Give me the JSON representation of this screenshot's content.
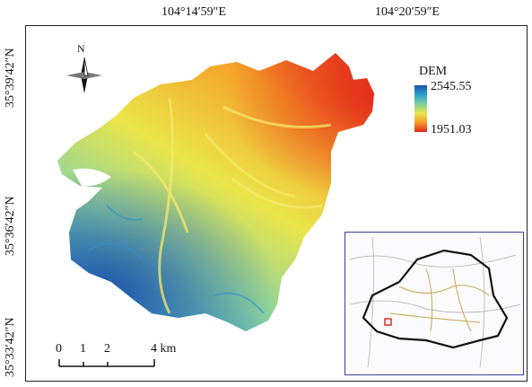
{
  "longitude_labels": [
    "104°14′59″E",
    "104°20′59″E"
  ],
  "latitude_labels": [
    "35°39′42″N",
    "35°36′42″N",
    "35°33′42″N"
  ],
  "north_arrow": {
    "label": "N",
    "icon": "north-arrow-icon"
  },
  "legend": {
    "title": "DEM",
    "max": "2545.55",
    "min": "1951.03",
    "colors": [
      "#1c4fa8",
      "#2a9fd0",
      "#7fd19a",
      "#e9e64a",
      "#f39a28",
      "#e3261a"
    ]
  },
  "scale_bar": {
    "ticks": [
      "0",
      "1",
      "2",
      "4 km"
    ]
  },
  "inset": {
    "highlight_color": "#d62020"
  }
}
